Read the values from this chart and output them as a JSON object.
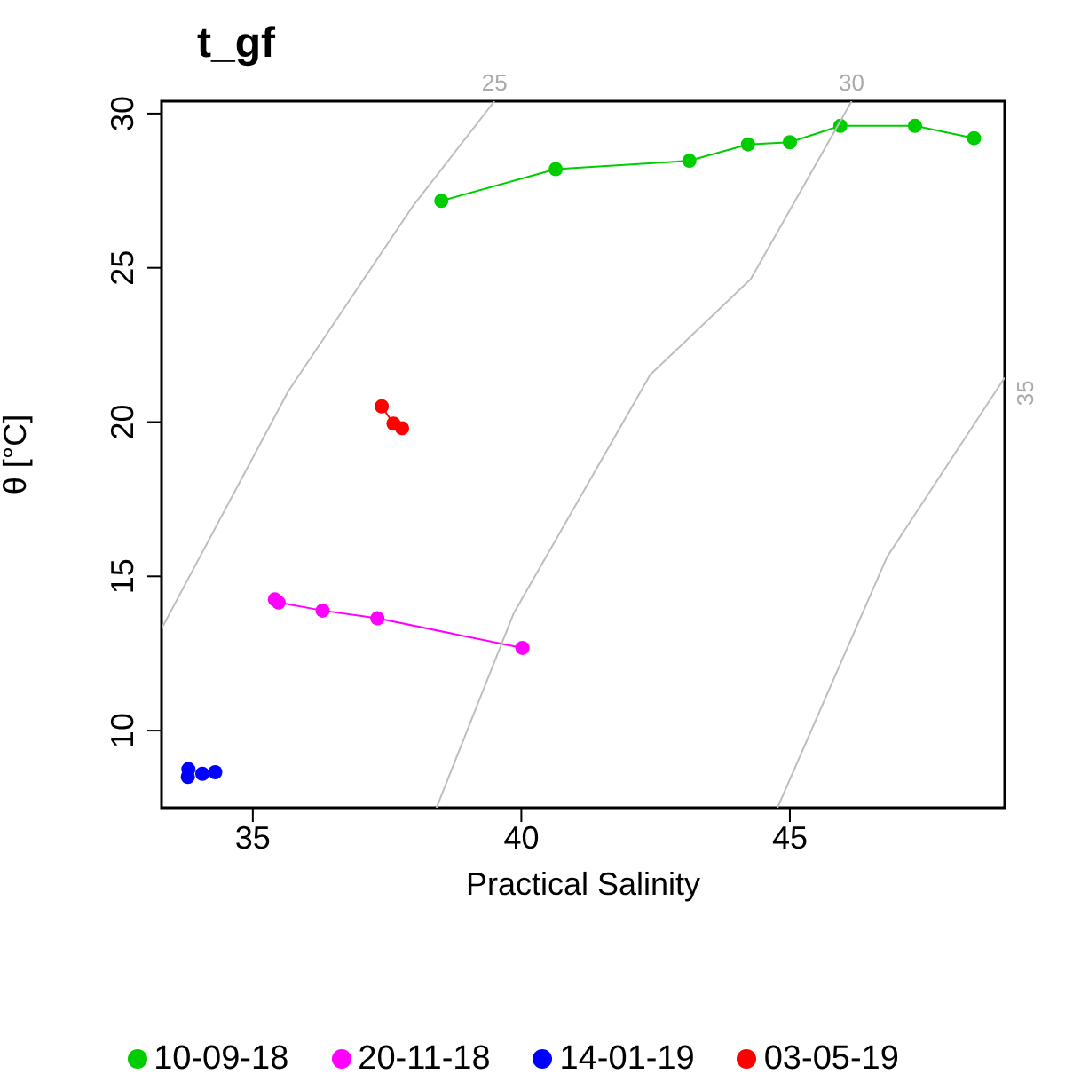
{
  "chart_data": {
    "type": "line",
    "title": "t_gf",
    "xlabel": "Practical Salinity",
    "ylabel": "θ [°C]",
    "xlim": [
      33.3,
      49.0
    ],
    "ylim": [
      7.5,
      30.4
    ],
    "xticks": [
      35,
      40,
      45
    ],
    "yticks": [
      10,
      15,
      20,
      25,
      30
    ],
    "grid": false,
    "legend": "bottom",
    "marker": "circle",
    "line_style": "solid",
    "series": [
      {
        "name": "10-09-18",
        "color": "#00cd00",
        "x": [
          38.51,
          40.64,
          43.13,
          44.22,
          45.0,
          45.94,
          47.33,
          48.43
        ],
        "values": [
          27.17,
          28.2,
          28.47,
          29.0,
          29.07,
          29.6,
          29.6,
          29.2
        ]
      },
      {
        "name": "20-11-18",
        "color": "#ff00ff",
        "x": [
          35.41,
          35.48,
          36.3,
          37.32,
          40.02
        ],
        "values": [
          14.25,
          14.15,
          13.89,
          13.64,
          12.68
        ]
      },
      {
        "name": "14-01-19",
        "color": "#0000ff",
        "type": "scatter",
        "x": [
          33.79,
          33.8,
          34.06,
          34.3
        ],
        "values": [
          8.5,
          8.75,
          8.6,
          8.65
        ]
      },
      {
        "name": "03-05-19",
        "color": "#ff0000",
        "x": [
          37.4,
          37.62,
          37.78
        ],
        "values": [
          20.51,
          19.95,
          19.8
        ]
      },
      {
        "color": "#bebebe",
        "marker": "none",
        "x": [
          33.3,
          35.66,
          37.98,
          39.5
        ],
        "values": [
          13.3,
          21.0,
          27.0,
          30.4
        ]
      },
      {
        "color": "#bebebe",
        "marker": "none",
        "x": [
          38.42,
          39.86,
          42.4,
          44.27,
          46.15
        ],
        "values": [
          7.5,
          13.81,
          21.53,
          24.63,
          30.4
        ]
      },
      {
        "color": "#bebebe",
        "marker": "none",
        "x": [
          44.77,
          46.81,
          49.0
        ],
        "values": [
          7.5,
          15.63,
          21.44
        ]
      }
    ],
    "annotations": [
      {
        "text": "25",
        "x": 39.5,
        "y": 30.4
      },
      {
        "text": "30",
        "x": 46.15,
        "y": 30.4
      },
      {
        "text": "35",
        "x": 49.0,
        "y": 21.44
      }
    ]
  }
}
